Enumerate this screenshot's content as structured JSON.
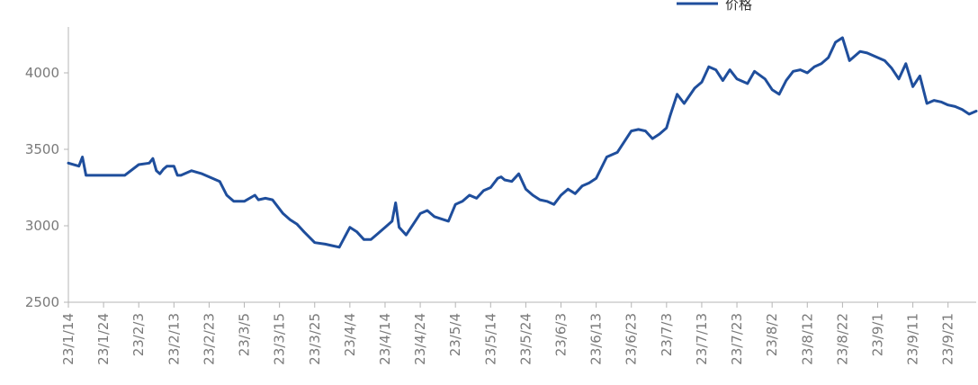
{
  "chart_data": {
    "type": "line",
    "title": "",
    "xlabel": "",
    "ylabel": "",
    "legend": {
      "position": "top-right",
      "entries": [
        "价格"
      ]
    },
    "ylim": [
      2500,
      4300
    ],
    "yticks": [
      2500,
      3000,
      3500,
      4000
    ],
    "x_tick_labels": [
      "23/1/14",
      "23/1/24",
      "23/2/3",
      "23/2/13",
      "23/2/23",
      "23/3/5",
      "23/3/15",
      "23/3/25",
      "23/4/4",
      "23/4/14",
      "23/4/24",
      "23/5/4",
      "23/5/14",
      "23/5/24",
      "23/6/3",
      "23/6/13",
      "23/6/23",
      "23/7/3",
      "23/7/13",
      "23/7/23",
      "23/8/2",
      "23/8/12",
      "23/8/22",
      "23/9/1",
      "23/9/11",
      "23/9/21"
    ],
    "x_range": [
      "23/1/14",
      "23/9/29"
    ],
    "grid": false,
    "colors": {
      "line": "#1f4e9c",
      "axis": "#b5b5b5",
      "tick_text": "#7a7a7a"
    },
    "series": [
      {
        "name": "价格",
        "x": [
          "23/1/14",
          "23/1/17",
          "23/1/18",
          "23/1/19",
          "23/1/20",
          "23/1/24",
          "23/1/30",
          "23/2/3",
          "23/2/6",
          "23/2/7",
          "23/2/8",
          "23/2/9",
          "23/2/10",
          "23/2/11",
          "23/2/13",
          "23/2/14",
          "23/2/15",
          "23/2/18",
          "23/2/21",
          "23/2/23",
          "23/2/26",
          "23/2/28",
          "23/3/2",
          "23/3/5",
          "23/3/8",
          "23/3/9",
          "23/3/11",
          "23/3/13",
          "23/3/16",
          "23/3/18",
          "23/3/20",
          "23/3/22",
          "23/3/25",
          "23/3/28",
          "23/3/30",
          "23/4/1",
          "23/4/4",
          "23/4/6",
          "23/4/8",
          "23/4/10",
          "23/4/12",
          "23/4/14",
          "23/4/16",
          "23/4/17",
          "23/4/18",
          "23/4/20",
          "23/4/22",
          "23/4/24",
          "23/4/26",
          "23/4/28",
          "23/5/2",
          "23/5/4",
          "23/5/6",
          "23/5/8",
          "23/5/10",
          "23/5/12",
          "23/5/14",
          "23/5/16",
          "23/5/17",
          "23/5/18",
          "23/5/20",
          "23/5/22",
          "23/5/24",
          "23/5/26",
          "23/5/28",
          "23/5/30",
          "23/6/1",
          "23/6/3",
          "23/6/5",
          "23/6/7",
          "23/6/9",
          "23/6/11",
          "23/6/13",
          "23/6/16",
          "23/6/19",
          "23/6/23",
          "23/6/25",
          "23/6/27",
          "23/6/29",
          "23/7/1",
          "23/7/3",
          "23/7/4",
          "23/7/6",
          "23/7/8",
          "23/7/11",
          "23/7/13",
          "23/7/15",
          "23/7/17",
          "23/7/19",
          "23/7/21",
          "23/7/23",
          "23/7/26",
          "23/7/28",
          "23/7/31",
          "23/8/2",
          "23/8/4",
          "23/8/6",
          "23/8/8",
          "23/8/10",
          "23/8/12",
          "23/8/14",
          "23/8/16",
          "23/8/18",
          "23/8/20",
          "23/8/22",
          "23/8/24",
          "23/8/27",
          "23/8/29",
          "23/9/1",
          "23/9/3",
          "23/9/5",
          "23/9/7",
          "23/9/9",
          "23/9/11",
          "23/9/13",
          "23/9/15",
          "23/9/17",
          "23/9/19",
          "23/9/21",
          "23/9/23",
          "23/9/25",
          "23/9/27",
          "23/9/29"
        ],
        "values": [
          3410,
          3390,
          3450,
          3330,
          3330,
          3330,
          3330,
          3400,
          3410,
          3440,
          3360,
          3340,
          3370,
          3390,
          3390,
          3330,
          3330,
          3360,
          3340,
          3320,
          3290,
          3200,
          3160,
          3160,
          3200,
          3170,
          3180,
          3170,
          3080,
          3040,
          3010,
          2960,
          2890,
          2880,
          2870,
          2860,
          2990,
          2960,
          2910,
          2910,
          2950,
          2990,
          3030,
          3150,
          2990,
          2940,
          3010,
          3080,
          3100,
          3060,
          3030,
          3140,
          3160,
          3200,
          3180,
          3230,
          3250,
          3310,
          3320,
          3300,
          3290,
          3340,
          3240,
          3200,
          3170,
          3160,
          3140,
          3200,
          3240,
          3210,
          3260,
          3280,
          3310,
          3450,
          3480,
          3620,
          3630,
          3620,
          3570,
          3600,
          3640,
          3720,
          3860,
          3800,
          3900,
          3940,
          4040,
          4020,
          3950,
          4020,
          3960,
          3930,
          4010,
          3960,
          3890,
          3860,
          3950,
          4010,
          4020,
          4000,
          4040,
          4060,
          4100,
          4200,
          4230,
          4080,
          4140,
          4130,
          4100,
          4080,
          4030,
          3960,
          4060,
          3910,
          3980,
          3800,
          3820,
          3810,
          3790,
          3780,
          3760,
          3730,
          3750
        ]
      }
    ]
  }
}
